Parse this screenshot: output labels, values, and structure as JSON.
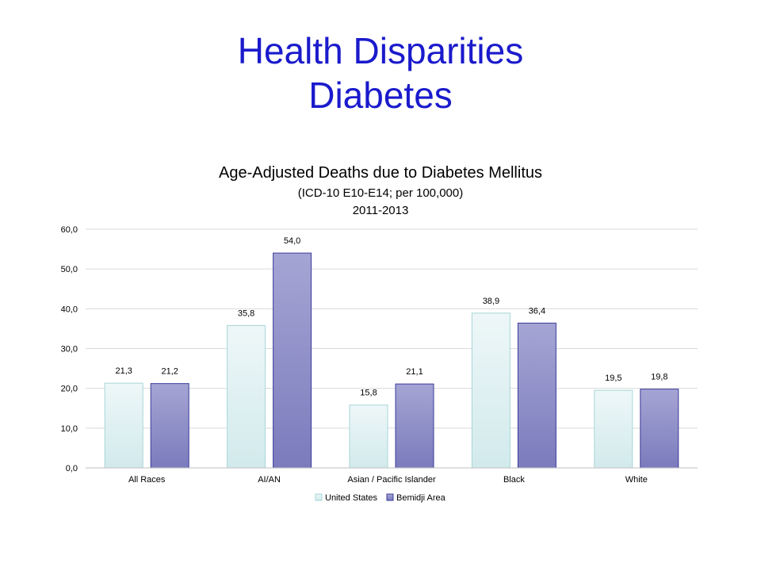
{
  "slide": {
    "title_line1": "Health Disparities",
    "title_line2": "Diabetes"
  },
  "chart_data": {
    "type": "bar",
    "title": "Age-Adjusted  Deaths  due to Diabetes  Mellitus",
    "subtitle": "(ICD-10 E10-E14; per 100,000)",
    "period": "2011-2013",
    "categories": [
      "All Races",
      "AI/AN",
      "Asian / Pacific Islander",
      "Black",
      "White"
    ],
    "series": [
      {
        "name": "United States",
        "values": [
          21.3,
          35.8,
          15.8,
          38.9,
          19.5
        ],
        "labels": [
          "21,3",
          "35,8",
          "15,8",
          "38,9",
          "19,5"
        ]
      },
      {
        "name": "Bemidji Area",
        "values": [
          21.2,
          54.0,
          21.1,
          36.4,
          19.8
        ],
        "labels": [
          "21,2",
          "54,0",
          "21,1",
          "36,4",
          "19,8"
        ]
      }
    ],
    "y_ticks": [
      "0,0",
      "10,0",
      "20,0",
      "30,0",
      "40,0",
      "50,0",
      "60,0"
    ],
    "ylim": [
      0,
      60
    ],
    "grid": true,
    "legend_position": "bottom",
    "colors": {
      "united_states_fill_top": "#eef7f8",
      "united_states_fill_bottom": "#d2eaec",
      "united_states_stroke": "#a8d6d8",
      "bemidji_fill_top": "#a5a5d4",
      "bemidji_fill_bottom": "#7b7bbd",
      "bemidji_stroke": "#3b3b9b",
      "gridline": "#d9d9d9",
      "axis": "#bfbfbf"
    }
  }
}
